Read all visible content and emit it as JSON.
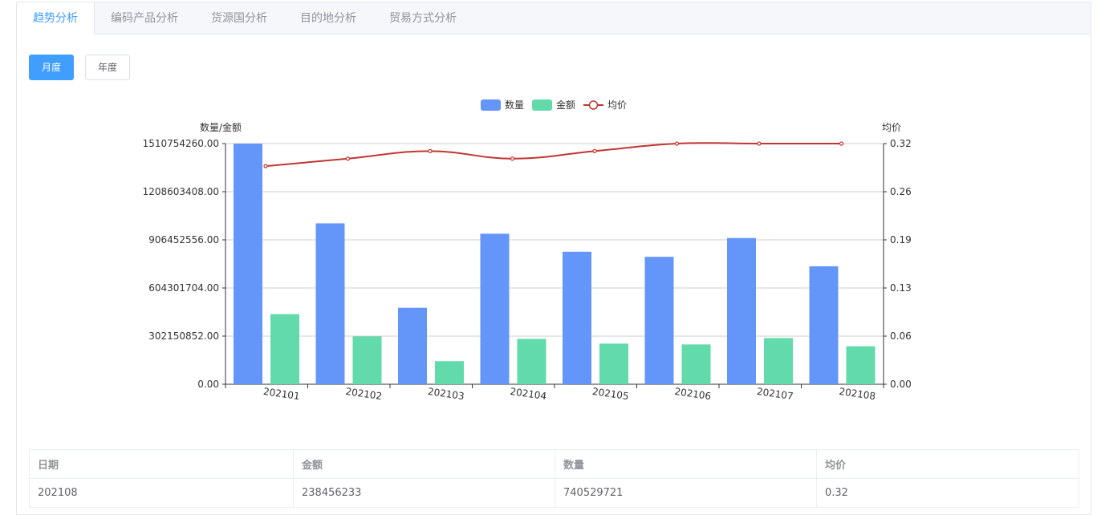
{
  "tabs": [
    {
      "label": "趋势分析",
      "active": true
    },
    {
      "label": "编码产品分析",
      "active": false
    },
    {
      "label": "货源国分析",
      "active": false
    },
    {
      "label": "目的地分析",
      "active": false
    },
    {
      "label": "贸易方式分析",
      "active": false
    }
  ],
  "buttons": {
    "monthly": "月度",
    "yearly": "年度"
  },
  "colors": {
    "qty": "#6495f9",
    "amount": "#62daab",
    "price": "#c23531",
    "accent": "#409eff"
  },
  "chart_data": {
    "type": "bar",
    "categories": [
      "202101",
      "202102",
      "202103",
      "202104",
      "202105",
      "202106",
      "202107",
      "202108"
    ],
    "series": [
      {
        "name": "数量",
        "type": "bar",
        "axis": "left",
        "values": [
          1510754260,
          1010000000,
          480000000,
          945000000,
          832000000,
          800000000,
          918000000,
          740529721
        ]
      },
      {
        "name": "金额",
        "type": "bar",
        "axis": "left",
        "values": [
          440000000,
          300000000,
          145000000,
          285000000,
          255000000,
          250000000,
          290000000,
          238456233
        ]
      },
      {
        "name": "均价",
        "type": "line",
        "axis": "right",
        "values": [
          0.29,
          0.3,
          0.31,
          0.3,
          0.31,
          0.32,
          0.32,
          0.32
        ]
      }
    ],
    "ylabel_left": "数量/金额",
    "ylabel_right": "均价",
    "ylim_left": [
      0,
      1510754260
    ],
    "ylim_right": [
      0,
      0.32
    ],
    "yticks_left": [
      "0.00",
      "302150852.00",
      "604301704.00",
      "906452556.00",
      "1208603408.00",
      "1510754260.00"
    ],
    "yticks_right": [
      "0.00",
      "0.06",
      "0.13",
      "0.19",
      "0.26",
      "0.32"
    ],
    "grid": true,
    "legend_position": "top-center"
  },
  "table": {
    "headers": [
      "日期",
      "金额",
      "数量",
      "均价"
    ],
    "rows": [
      [
        "202108",
        "238456233",
        "740529721",
        "0.32"
      ]
    ]
  }
}
